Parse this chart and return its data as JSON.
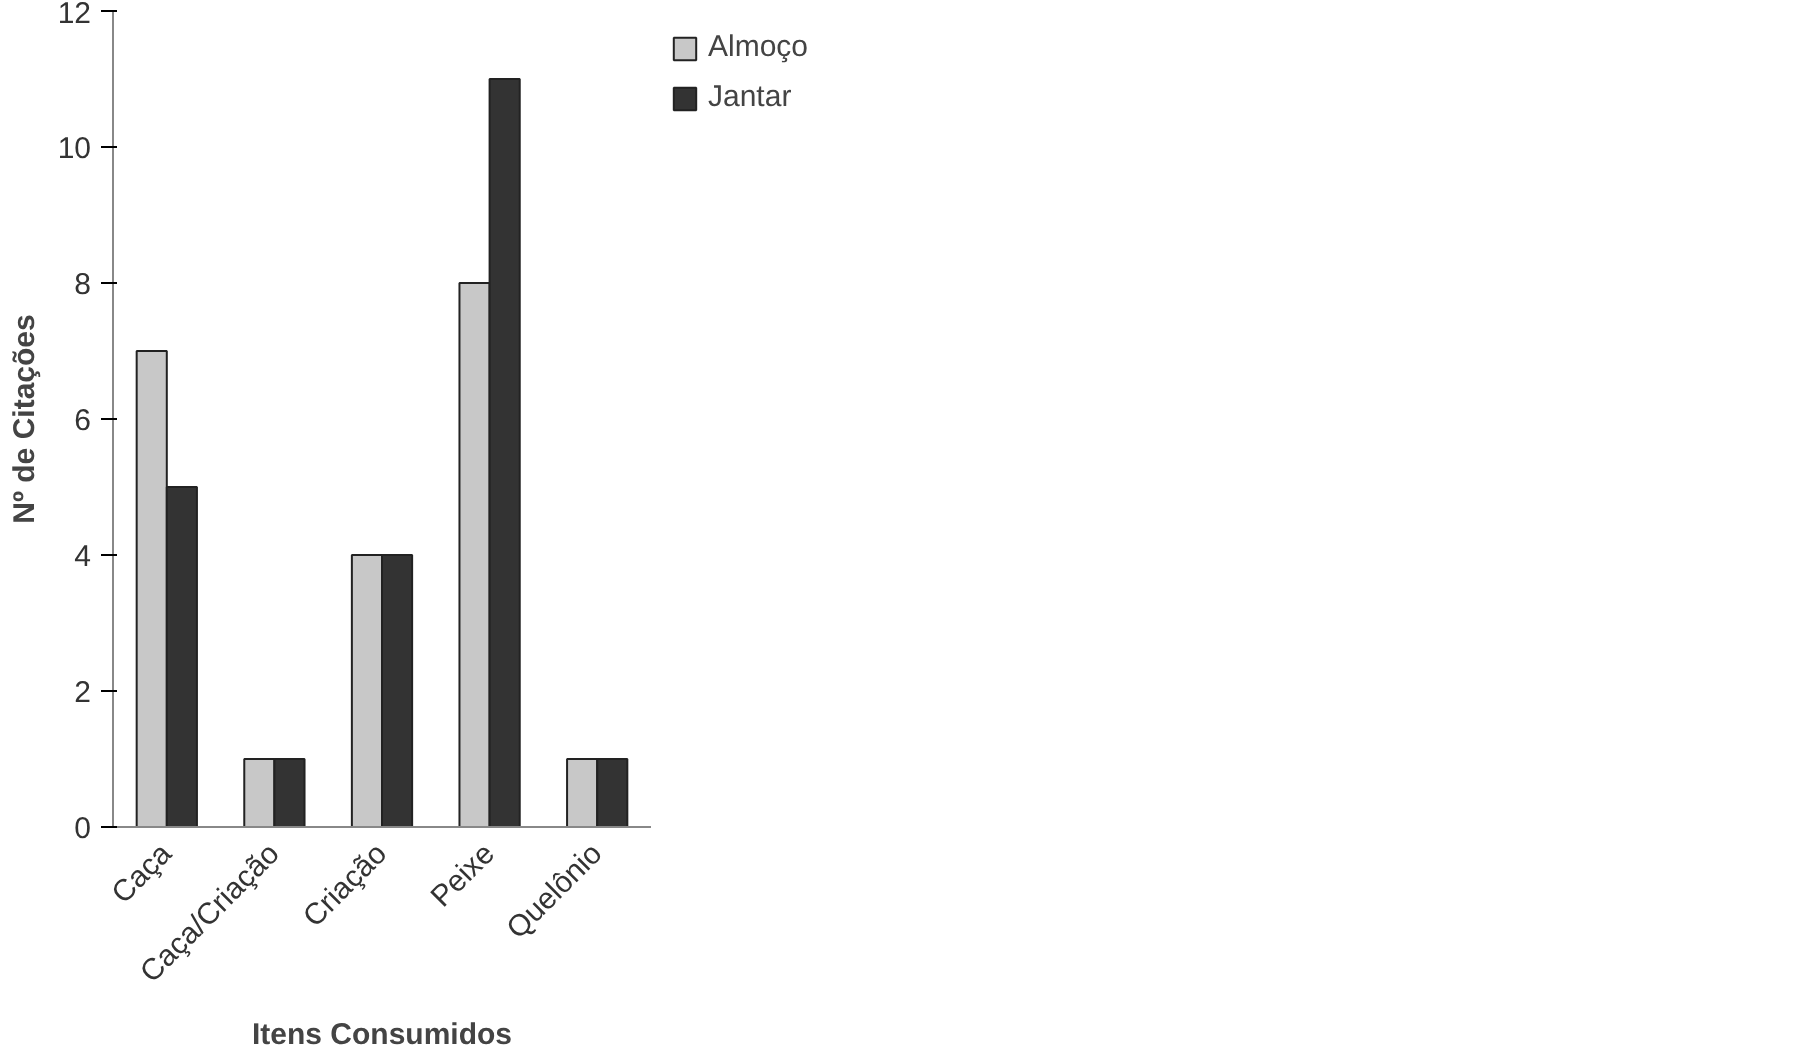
{
  "chart_data": {
    "type": "bar",
    "xlabel": "Itens Consumidos",
    "ylabel": "Nº de Citações",
    "categories": [
      "Caça",
      "Caça/Criação",
      "Criação",
      "Peixe",
      "Quelônio"
    ],
    "series": [
      {
        "name": "Almoço",
        "color": "#c8c8c8",
        "values": [
          7,
          1,
          4,
          8,
          1
        ]
      },
      {
        "name": "Jantar",
        "color": "#333333",
        "values": [
          5,
          1,
          4,
          11,
          1
        ]
      }
    ],
    "ylim": [
      0,
      12
    ],
    "yticks": [
      0,
      2,
      4,
      6,
      8,
      10,
      12
    ],
    "grid": false,
    "legend": "right"
  }
}
